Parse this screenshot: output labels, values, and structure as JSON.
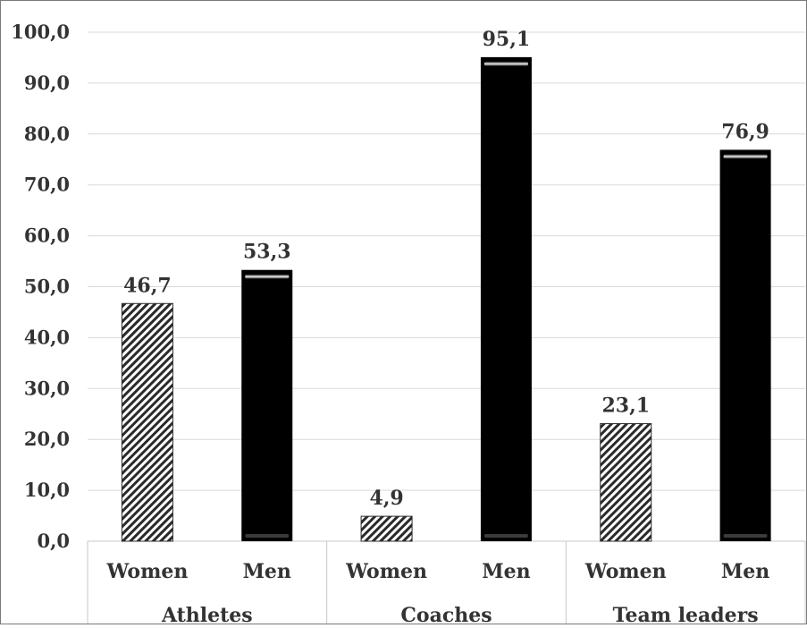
{
  "chart_data": {
    "type": "bar",
    "groups": [
      {
        "label": "Athletes",
        "bars": [
          {
            "label": "Women",
            "value": 46.7,
            "value_label": "46,7",
            "style": "hatched"
          },
          {
            "label": "Men",
            "value": 53.3,
            "value_label": "53,3",
            "style": "solid"
          }
        ]
      },
      {
        "label": "Coaches",
        "bars": [
          {
            "label": "Women",
            "value": 4.9,
            "value_label": "4,9",
            "style": "hatched"
          },
          {
            "label": "Men",
            "value": 95.1,
            "value_label": "95,1",
            "style": "solid"
          }
        ]
      },
      {
        "label": "Team leaders",
        "bars": [
          {
            "label": "Women",
            "value": 23.1,
            "value_label": "23,1",
            "style": "hatched"
          },
          {
            "label": "Men",
            "value": 76.9,
            "value_label": "76,9",
            "style": "solid"
          }
        ]
      }
    ],
    "y_ticks": [
      "0,0",
      "10,0",
      "20,0",
      "30,0",
      "40,0",
      "50,0",
      "60,0",
      "70,0",
      "80,0",
      "90,0",
      "100,0"
    ],
    "ylim": [
      0,
      100
    ],
    "grid": true,
    "legend": "none",
    "colors": {
      "solid": "#000000",
      "hatch": "#2a2a2a",
      "grid": "#d9d9d9",
      "text": "#333333"
    }
  }
}
